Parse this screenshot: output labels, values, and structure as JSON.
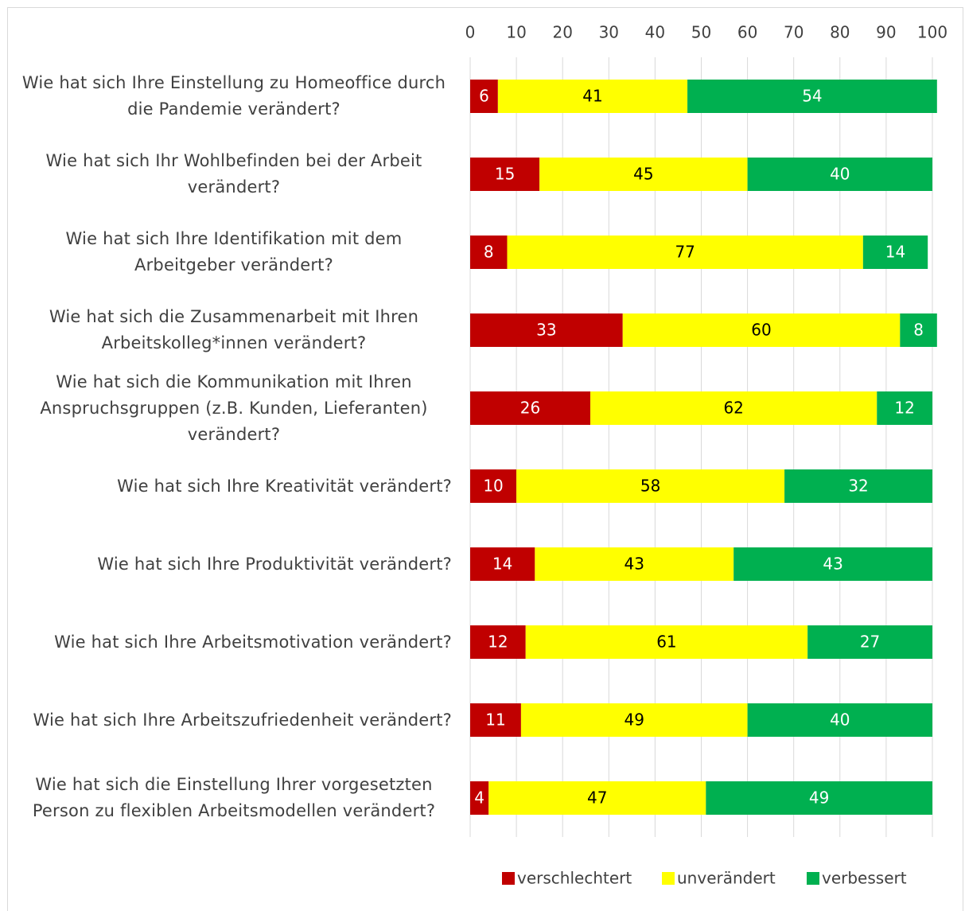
{
  "chart_data": {
    "type": "stacked_barh",
    "categories": [
      "Wie hat sich Ihre Einstellung zu Homeoffice durch die Pandemie verändert?",
      "Wie hat sich Ihr Wohlbefinden bei der Arbeit verändert?",
      "Wie hat sich Ihre Identifikation mit dem Arbeitgeber verändert?",
      "Wie hat sich die Zusammenarbeit mit Ihren Arbeitskolleg*innen verändert?",
      "Wie hat sich die Kommunikation mit Ihren Anspruchsgruppen (z.B. Kunden, Lieferanten) verändert?",
      "Wie hat sich Ihre Kreativität verändert?",
      "Wie hat sich Ihre Produktivität verändert?",
      "Wie hat sich Ihre Arbeitsmotivation verändert?",
      "Wie hat sich Ihre Arbeitszufriedenheit verändert?",
      "Wie hat sich die Einstellung Ihrer vorgesetzten Person zu flexiblen Arbeitsmodellen verändert?"
    ],
    "series": [
      {
        "name": "verschlechtert",
        "color": "#c00000",
        "values": [
          6,
          15,
          8,
          33,
          26,
          10,
          14,
          12,
          11,
          4
        ]
      },
      {
        "name": "unverändert",
        "color": "#ffff00",
        "values": [
          41,
          45,
          77,
          60,
          62,
          58,
          43,
          61,
          49,
          47
        ]
      },
      {
        "name": "verbessert",
        "color": "#00b050",
        "values": [
          54,
          40,
          14,
          8,
          12,
          32,
          43,
          27,
          40,
          49
        ]
      }
    ],
    "xlim": [
      0,
      100
    ],
    "xticks": [
      0,
      10,
      20,
      30,
      40,
      50,
      60,
      70,
      80,
      90,
      100
    ],
    "grid": true,
    "legend": "bottom"
  }
}
